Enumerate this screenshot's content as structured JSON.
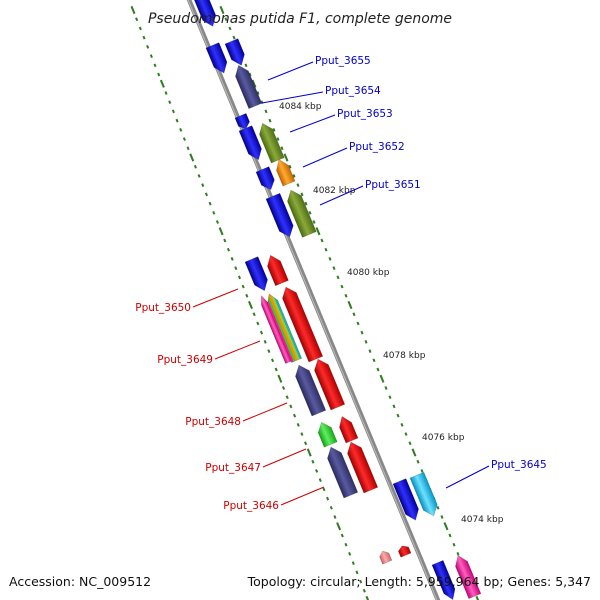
{
  "title": "Pseudomonas putida F1, complete genome",
  "kbp_labels": [
    "4084 kbp",
    "4082 kbp",
    "4080 kbp",
    "4078 kbp",
    "4076 kbp",
    "4074 kbp"
  ],
  "gene_labels": {
    "right": [
      "Pput_3655",
      "Pput_3654",
      "Pput_3653",
      "Pput_3652",
      "Pput_3651",
      "Pput_3645"
    ],
    "left": [
      "Pput_3650",
      "Pput_3649",
      "Pput_3648",
      "Pput_3647",
      "Pput_3646"
    ]
  },
  "colors": {
    "forward_label": "#0000cc",
    "reverse_label": "#cc0000",
    "backbone": "#777777",
    "ticks": "#2e7d1e"
  },
  "footer": {
    "accession": "Accession: NC_009512",
    "stats": "Topology: circular; Length: 5,959,964 bp; Genes: 5,347"
  }
}
